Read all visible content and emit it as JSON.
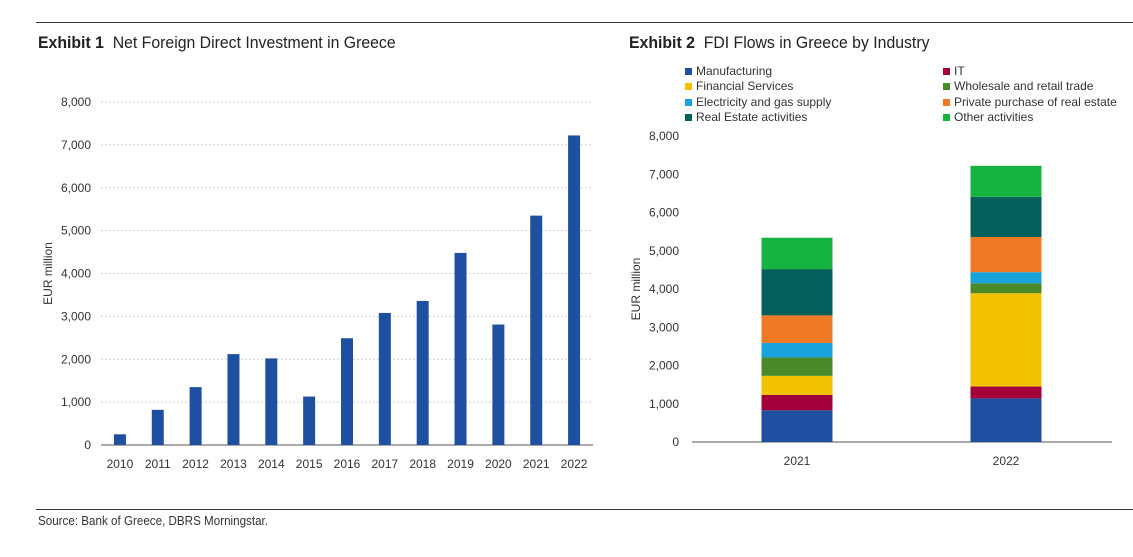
{
  "exhibit1": {
    "label": "Exhibit 1",
    "title": "Net Foreign Direct Investment in Greece"
  },
  "exhibit2": {
    "label": "Exhibit 2",
    "title": "FDI Flows in Greece by Industry"
  },
  "source": "Source: Bank of Greece, DBRS Morningstar.",
  "colors": {
    "bar": "#1f4fa0",
    "grid": "#cfcfcf",
    "axis": "#555555"
  },
  "chart_data": [
    {
      "type": "bar",
      "title": "Net Foreign Direct Investment in Greece",
      "xlabel": "",
      "ylabel": "EUR million",
      "categories": [
        "2010",
        "2011",
        "2012",
        "2013",
        "2014",
        "2015",
        "2016",
        "2017",
        "2018",
        "2019",
        "2020",
        "2021",
        "2022"
      ],
      "values": [
        250,
        820,
        1350,
        2120,
        2020,
        1130,
        2490,
        3080,
        3360,
        4480,
        2810,
        5350,
        7220
      ],
      "ylim": [
        0,
        8000
      ],
      "yticks": [
        0,
        1000,
        2000,
        3000,
        4000,
        5000,
        6000,
        7000,
        8000
      ],
      "ytick_labels": [
        "0",
        "1,000",
        "2,000",
        "3,000",
        "4,000",
        "5,000",
        "6,000",
        "7,000",
        "8,000"
      ],
      "grid": true,
      "color": "#1f4fa0"
    },
    {
      "type": "bar",
      "stacked": true,
      "title": "FDI Flows in Greece by Industry",
      "xlabel": "",
      "ylabel": "EUR million",
      "categories": [
        "2021",
        "2022"
      ],
      "ylim": [
        0,
        8000
      ],
      "yticks": [
        0,
        1000,
        2000,
        3000,
        4000,
        5000,
        6000,
        7000,
        8000
      ],
      "ytick_labels": [
        "0",
        "1,000",
        "2,000",
        "3,000",
        "4,000",
        "5,000",
        "6,000",
        "7,000",
        "8,000"
      ],
      "grid": false,
      "legend": "top",
      "series": [
        {
          "name": "Manufacturing",
          "color": "#1f4fa0",
          "values": [
            830,
            1140
          ]
        },
        {
          "name": "IT",
          "color": "#a3003a",
          "values": [
            400,
            310
          ]
        },
        {
          "name": "Financial Services",
          "color": "#f2c200",
          "values": [
            500,
            2440
          ]
        },
        {
          "name": "Wholesale and retail trade",
          "color": "#4a8a2a",
          "values": [
            480,
            260
          ]
        },
        {
          "name": "Electricity and gas supply",
          "color": "#19a3dc",
          "values": [
            380,
            290
          ]
        },
        {
          "name": "Private purchase of real estate",
          "color": "#ee7a26",
          "values": [
            720,
            920
          ]
        },
        {
          "name": "Real Estate activities",
          "color": "#055f5a",
          "values": [
            1210,
            1050
          ]
        },
        {
          "name": "Other activities",
          "color": "#15b33f",
          "values": [
            820,
            810
          ]
        }
      ]
    }
  ]
}
